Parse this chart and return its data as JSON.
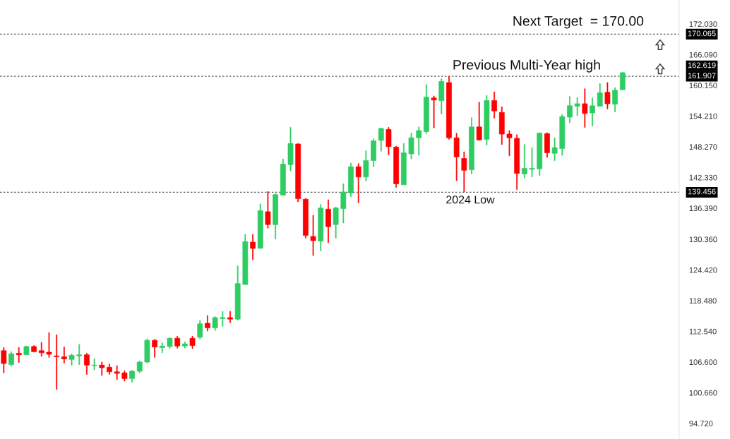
{
  "chart_data": {
    "type": "candlestick",
    "categories": [
      null,
      null,
      null,
      null,
      null,
      null,
      null,
      null,
      null,
      null,
      null,
      null,
      null,
      null,
      null,
      null,
      null,
      null,
      null,
      null,
      null,
      null,
      null,
      null,
      null,
      null,
      null,
      null,
      null,
      null,
      null,
      null,
      null,
      null,
      null,
      null,
      null,
      null,
      null,
      null,
      null,
      null,
      null,
      null,
      null,
      null,
      null,
      null,
      null,
      null,
      null,
      null,
      null,
      null,
      null,
      null,
      null,
      null,
      null,
      null,
      null,
      null,
      null,
      null,
      null,
      null,
      null,
      null,
      null,
      null,
      null,
      null,
      null,
      null,
      null,
      null,
      null,
      null,
      null,
      null,
      null,
      null,
      null,
      null,
      null,
      null,
      null,
      null,
      null,
      null
    ],
    "ohlc": [
      [
        108.8,
        109.4,
        104.5,
        106.3
      ],
      [
        106.1,
        108.6,
        105.8,
        108.2
      ],
      [
        108.3,
        109.4,
        106.5,
        108.0
      ],
      [
        108.0,
        109.7,
        108.0,
        109.6
      ],
      [
        109.6,
        109.8,
        108.5,
        108.6
      ],
      [
        108.8,
        110.4,
        107.7,
        108.4
      ],
      [
        108.5,
        112.3,
        107.5,
        108.1
      ],
      [
        107.8,
        111.9,
        101.3,
        107.6
      ],
      [
        107.6,
        109.5,
        106.4,
        107.2
      ],
      [
        107.1,
        108.2,
        106.0,
        107.9
      ],
      [
        107.8,
        110.0,
        106.1,
        108.0
      ],
      [
        108.0,
        108.3,
        104.2,
        106.0
      ],
      [
        105.9,
        107.2,
        105.1,
        106.0
      ],
      [
        106.0,
        106.6,
        104.0,
        105.5
      ],
      [
        105.6,
        106.2,
        104.2,
        104.7
      ],
      [
        104.7,
        105.9,
        103.2,
        104.4
      ],
      [
        104.5,
        104.9,
        102.9,
        103.4
      ],
      [
        103.4,
        105.0,
        102.7,
        104.8
      ],
      [
        104.8,
        106.8,
        104.5,
        106.6
      ],
      [
        106.6,
        111.1,
        106.4,
        110.8
      ],
      [
        110.8,
        111.0,
        107.5,
        109.5
      ],
      [
        109.4,
        110.3,
        108.4,
        109.7
      ],
      [
        109.6,
        111.3,
        109.3,
        111.2
      ],
      [
        111.2,
        111.6,
        109.3,
        109.7
      ],
      [
        109.7,
        110.5,
        109.3,
        110.1
      ],
      [
        111.2,
        111.6,
        109.2,
        109.8
      ],
      [
        111.4,
        114.7,
        111.1,
        114.0
      ],
      [
        114.1,
        115.6,
        112.6,
        113.2
      ],
      [
        113.2,
        115.4,
        112.7,
        115.2
      ],
      [
        115.0,
        116.4,
        113.5,
        115.2
      ],
      [
        115.2,
        116.4,
        114.2,
        114.9
      ],
      [
        114.9,
        125.2,
        114.7,
        121.8
      ],
      [
        121.6,
        131.3,
        121.6,
        129.9
      ],
      [
        129.8,
        131.3,
        126.4,
        128.6
      ],
      [
        128.6,
        137.2,
        128.6,
        135.9
      ],
      [
        135.7,
        139.6,
        132.5,
        133.2
      ],
      [
        133.2,
        139.2,
        130.4,
        139.0
      ],
      [
        138.9,
        145.9,
        138.9,
        144.9
      ],
      [
        144.8,
        152.0,
        143.6,
        148.9
      ],
      [
        148.8,
        148.9,
        137.6,
        138.2
      ],
      [
        138.1,
        138.3,
        130.6,
        131.1
      ],
      [
        130.9,
        135.0,
        127.2,
        130.1
      ],
      [
        130.0,
        137.1,
        128.1,
        136.4
      ],
      [
        136.2,
        138.0,
        129.7,
        132.8
      ],
      [
        133.2,
        136.6,
        130.6,
        136.4
      ],
      [
        136.3,
        141.1,
        133.5,
        139.5
      ],
      [
        139.3,
        145.1,
        138.6,
        144.4
      ],
      [
        144.4,
        145.0,
        137.4,
        142.4
      ],
      [
        142.4,
        147.5,
        141.6,
        145.6
      ],
      [
        145.6,
        149.8,
        144.4,
        149.4
      ],
      [
        149.5,
        151.9,
        147.4,
        151.8
      ],
      [
        151.6,
        152.0,
        146.7,
        148.3
      ],
      [
        148.2,
        148.4,
        140.4,
        141.1
      ],
      [
        140.9,
        148.9,
        140.9,
        147.1
      ],
      [
        146.9,
        150.9,
        145.9,
        150.0
      ],
      [
        150.0,
        152.1,
        146.6,
        151.4
      ],
      [
        151.2,
        160.3,
        150.8,
        157.9
      ],
      [
        157.7,
        158.1,
        151.9,
        157.3
      ],
      [
        157.2,
        161.4,
        154.6,
        160.9
      ],
      [
        160.7,
        161.9,
        149.7,
        150.0
      ],
      [
        150.0,
        150.9,
        141.7,
        146.3
      ],
      [
        146.0,
        147.3,
        139.5,
        143.7
      ],
      [
        143.8,
        153.9,
        143.0,
        152.1
      ],
      [
        152.1,
        156.9,
        149.5,
        149.6
      ],
      [
        149.7,
        158.2,
        148.6,
        157.2
      ],
      [
        157.2,
        158.9,
        153.8,
        155.2
      ],
      [
        154.9,
        156.0,
        148.7,
        150.7
      ],
      [
        150.7,
        151.4,
        146.5,
        150.0
      ],
      [
        149.9,
        150.6,
        140.0,
        143.1
      ],
      [
        143.0,
        148.7,
        142.2,
        144.1
      ],
      [
        143.9,
        148.1,
        142.4,
        144.1
      ],
      [
        144.0,
        151.0,
        142.7,
        150.9
      ],
      [
        150.8,
        151.0,
        146.2,
        147.1
      ],
      [
        147.0,
        150.0,
        145.6,
        148.1
      ],
      [
        147.9,
        154.5,
        146.6,
        154.1
      ],
      [
        154.0,
        158.0,
        152.9,
        156.2
      ],
      [
        156.1,
        157.8,
        154.3,
        156.6
      ],
      [
        156.6,
        159.5,
        152.0,
        154.7
      ],
      [
        154.8,
        157.7,
        152.3,
        156.2
      ],
      [
        156.1,
        160.5,
        156.1,
        158.7
      ],
      [
        158.8,
        160.7,
        155.6,
        156.6
      ],
      [
        156.5,
        159.7,
        155.0,
        159.2
      ],
      [
        159.3,
        162.7,
        159.3,
        162.6
      ],
      null,
      null,
      null,
      null,
      null,
      null,
      null
    ],
    "colors": [
      "#ff0000",
      "#2ecc63",
      "#ff0000",
      "#2ecc63",
      "#ff0000",
      "#ff0000",
      "#ff0000",
      "#ff0000",
      "#ff0000",
      "#2ecc63",
      "#2ecc63",
      "#ff0000",
      "#2ecc63",
      "#ff0000",
      "#ff0000",
      "#ff0000",
      "#ff0000",
      "#2ecc63",
      "#2ecc63",
      "#2ecc63",
      "#ff0000",
      "#2ecc63",
      "#2ecc63",
      "#ff0000",
      "#2ecc63",
      "#ff0000",
      "#2ecc63",
      "#ff0000",
      "#2ecc63",
      "#2ecc63",
      "#ff0000",
      "#2ecc63",
      "#2ecc63",
      "#ff0000",
      "#2ecc63",
      "#ff0000",
      "#2ecc63",
      "#2ecc63",
      "#2ecc63",
      "#ff0000",
      "#ff0000",
      "#ff0000",
      "#2ecc63",
      "#ff0000",
      "#2ecc63",
      "#2ecc63",
      "#2ecc63",
      "#ff0000",
      "#2ecc63",
      "#2ecc63",
      "#2ecc63",
      "#ff0000",
      "#ff0000",
      "#2ecc63",
      "#2ecc63",
      "#2ecc63",
      "#2ecc63",
      "#ff0000",
      "#2ecc63",
      "#ff0000",
      "#ff0000",
      "#ff0000",
      "#2ecc63",
      "#ff0000",
      "#2ecc63",
      "#ff0000",
      "#ff0000",
      "#ff0000",
      "#ff0000",
      "#2ecc63",
      "#2ecc63",
      "#2ecc63",
      "#ff0000",
      "#2ecc63",
      "#2ecc63",
      "#2ecc63",
      "#2ecc63",
      "#ff0000",
      "#2ecc63",
      "#2ecc63",
      "#ff0000",
      "#2ecc63",
      "#2ecc63",
      null,
      null,
      null,
      null,
      null,
      null,
      null
    ],
    "ylim": [
      91.7,
      176.67
    ],
    "yticks": [
      {
        "value": 94.72,
        "label": "94.720"
      },
      {
        "value": 100.66,
        "label": "100.660"
      },
      {
        "value": 106.6,
        "label": "106.600"
      },
      {
        "value": 112.54,
        "label": "112.540"
      },
      {
        "value": 118.48,
        "label": "118.480"
      },
      {
        "value": 124.42,
        "label": "124.420"
      },
      {
        "value": 130.36,
        "label": "130.360"
      },
      {
        "value": 136.39,
        "label": "136.390"
      },
      {
        "value": 142.33,
        "label": "142.330"
      },
      {
        "value": 148.27,
        "label": "148.270"
      },
      {
        "value": 154.21,
        "label": "154.210"
      },
      {
        "value": 160.15,
        "label": "160.150"
      },
      {
        "value": 166.09,
        "label": "166.090"
      },
      {
        "value": 172.03,
        "label": "172.030"
      }
    ],
    "ref_lines": [
      {
        "axis": "y",
        "value": 170.065,
        "label": "170.065",
        "color": "#555555",
        "line_style": "dotted"
      },
      {
        "axis": "y",
        "value": 161.907,
        "label": "161.907",
        "color": "#555555",
        "line_style": "dotted"
      },
      {
        "axis": "y",
        "value": 139.456,
        "label": "139.456",
        "color": "#555555",
        "line_style": "dotted"
      }
    ],
    "annotations": [
      "Next Target  = 170.00",
      "Previous Multi-Year high",
      "2024 Low",
      "162.619"
    ],
    "grid": false
  }
}
